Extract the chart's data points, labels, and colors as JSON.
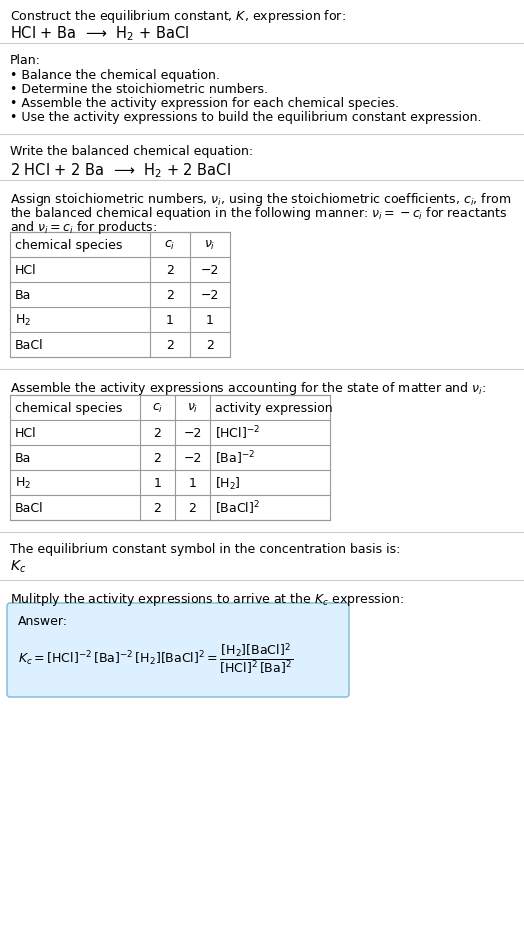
{
  "bg_color": "#ffffff",
  "answer_box_color": "#ddf0ff",
  "answer_box_border": "#7ab8d8",
  "line_color": "#cccccc",
  "table_border_color": "#999999",
  "font_size": 9.0,
  "sections": {
    "title1": "Construct the equilibrium constant, $K$, expression for:",
    "title2": "HCl + Ba  ⟶  H$_2$ + BaCl",
    "plan_header": "Plan:",
    "plan_items": [
      "• Balance the chemical equation.",
      "• Determine the stoichiometric numbers.",
      "• Assemble the activity expression for each chemical species.",
      "• Use the activity expressions to build the equilibrium constant expression."
    ],
    "balanced_header": "Write the balanced chemical equation:",
    "balanced_eq": "2 HCl + 2 Ba  ⟶  H$_2$ + 2 BaCl",
    "stoich_para1": "Assign stoichiometric numbers, $\\nu_i$, using the stoichiometric coefficients, $c_i$, from",
    "stoich_para2": "the balanced chemical equation in the following manner: $\\nu_i = -c_i$ for reactants",
    "stoich_para3": "and $\\nu_i = c_i$ for products:",
    "table1_h": [
      "chemical species",
      "$c_i$",
      "$\\nu_i$"
    ],
    "table1_rows": [
      [
        "HCl",
        "2",
        "−2"
      ],
      [
        "Ba",
        "2",
        "−2"
      ],
      [
        "H$_2$",
        "1",
        "1"
      ],
      [
        "BaCl",
        "2",
        "2"
      ]
    ],
    "assemble_header": "Assemble the activity expressions accounting for the state of matter and $\\nu_i$:",
    "table2_h": [
      "chemical species",
      "$c_i$",
      "$\\nu_i$",
      "activity expression"
    ],
    "table2_rows": [
      [
        "HCl",
        "2",
        "−2",
        "[HCl]$^{-2}$"
      ],
      [
        "Ba",
        "2",
        "−2",
        "[Ba]$^{-2}$"
      ],
      [
        "H$_2$",
        "1",
        "1",
        "[H$_2$]"
      ],
      [
        "BaCl",
        "2",
        "2",
        "[BaCl]$^2$"
      ]
    ],
    "kc_header": "The equilibrium constant symbol in the concentration basis is:",
    "kc_symbol": "$K_c$",
    "multiply_header": "Mulitply the activity expressions to arrive at the $K_c$ expression:",
    "answer_label": "Answer:",
    "answer_eq_left": "$K_c = [\\mathrm{HCl}]^{-2}\\,[\\mathrm{Ba}]^{-2}\\,[\\mathrm{H_2}][\\mathrm{BaCl}]^2$",
    "answer_eq_right": "$= \\dfrac{[\\mathrm{H_2}][\\mathrm{BaCl}]^2}{[\\mathrm{HCl}]^2\\,[\\mathrm{Ba}]^2}$"
  }
}
